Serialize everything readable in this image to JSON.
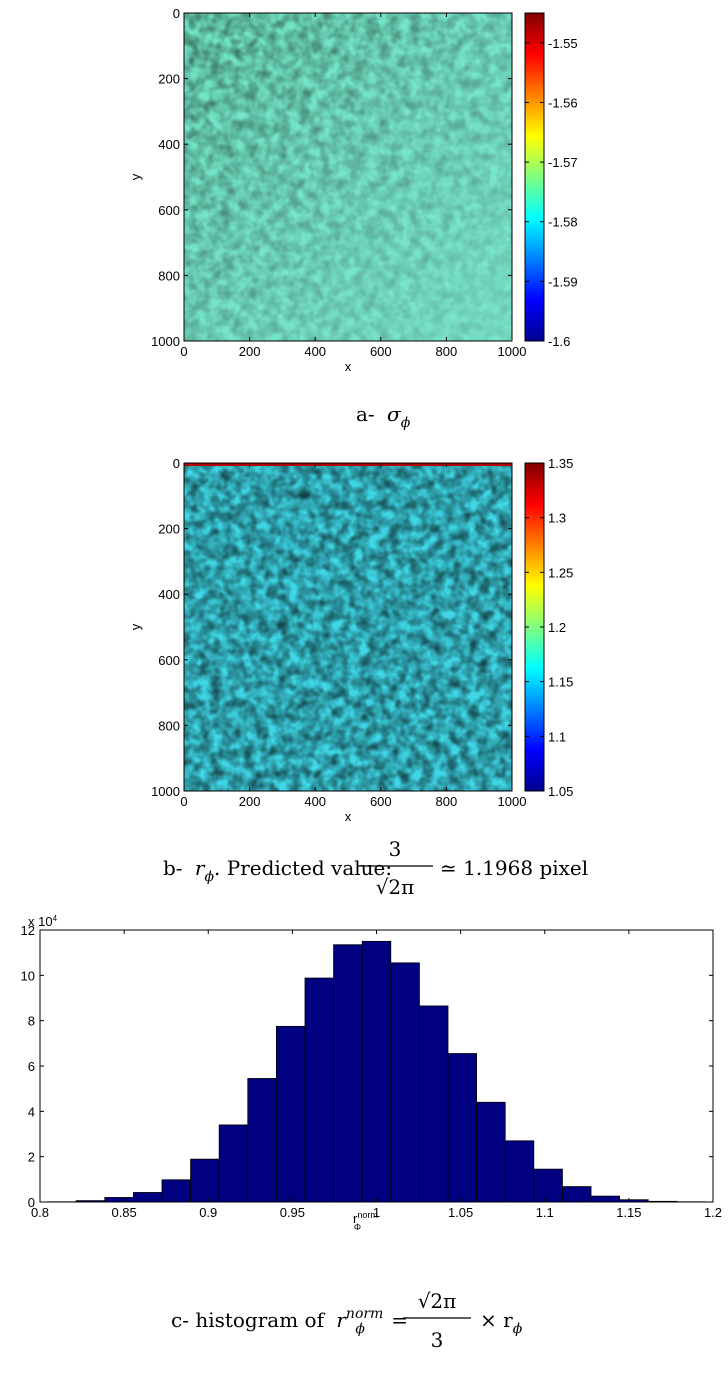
{
  "chart_data": [
    {
      "type": "heatmap",
      "xlabel": "x",
      "ylabel": "y",
      "xlim": [
        0,
        1000
      ],
      "ylim": [
        0,
        1000
      ],
      "y_reversed": true,
      "x_ticks": [
        "0",
        "200",
        "400",
        "600",
        "800",
        "1000"
      ],
      "y_ticks": [
        "0",
        "200",
        "400",
        "600",
        "800",
        "1000"
      ],
      "colorbar": {
        "colormap": "jet",
        "range": [
          -1.6,
          -1.545
        ],
        "ticks": [
          "-1.55",
          "-1.56",
          "-1.57",
          "-1.58",
          "-1.59",
          "-1.6"
        ]
      },
      "caption_prefix": "a-",
      "caption_symbol": "σ",
      "caption_sub": "ϕ"
    },
    {
      "type": "heatmap",
      "xlabel": "x",
      "ylabel": "y",
      "xlim": [
        0,
        1000
      ],
      "ylim": [
        0,
        1000
      ],
      "y_reversed": true,
      "x_ticks": [
        "0",
        "200",
        "400",
        "600",
        "800",
        "1000"
      ],
      "y_ticks": [
        "0",
        "200",
        "400",
        "600",
        "800",
        "1000"
      ],
      "colorbar": {
        "colormap": "jet",
        "range": [
          1.05,
          1.35
        ],
        "ticks": [
          "1.35",
          "1.3",
          "1.25",
          "1.2",
          "1.15",
          "1.1",
          "1.05"
        ]
      },
      "caption_prefix": "b-",
      "caption_symbol": "r",
      "caption_sub": "ϕ",
      "caption_text": ". Predicted value:",
      "caption_numerator": "3",
      "caption_denominator": "√2π",
      "caption_value": "≃ 1.1968 pixel"
    },
    {
      "type": "bar",
      "xlabel": "r",
      "xlabel_sup": "norm",
      "xlabel_sub": "Φ",
      "xlim": [
        0.8,
        1.2
      ],
      "ylim": [
        0,
        120000
      ],
      "y_exponent_label": "x 10",
      "y_exponent_power": "4",
      "x_ticks": [
        "0.8",
        "0.85",
        "0.9",
        "0.95",
        "1",
        "1.05",
        "1.1",
        "1.15",
        "1.2"
      ],
      "y_ticks": [
        "0",
        "2",
        "4",
        "6",
        "8",
        "10",
        "12"
      ],
      "bar_color": "#000080",
      "bins": [
        0.813,
        0.83,
        0.847,
        0.864,
        0.881,
        0.898,
        0.915,
        0.932,
        0.949,
        0.966,
        0.983,
        1.0,
        1.017,
        1.034,
        1.051,
        1.068,
        1.085,
        1.102,
        1.119,
        1.136,
        1.153,
        1.17,
        1.187
      ],
      "values": [
        100,
        600,
        2000,
        4200,
        9800,
        18900,
        34000,
        54500,
        77500,
        98800,
        113500,
        115000,
        105500,
        86500,
        65500,
        44000,
        27000,
        14500,
        6800,
        2600,
        1000,
        300,
        100
      ],
      "caption_prefix": "c- histogram of",
      "caption_symbol": "r",
      "caption_sub": "ϕ",
      "caption_sup": "norm",
      "caption_numerator": "√2π",
      "caption_denominator": "3",
      "caption_suffix": "× r",
      "caption_suffix_sub": "ϕ"
    }
  ]
}
